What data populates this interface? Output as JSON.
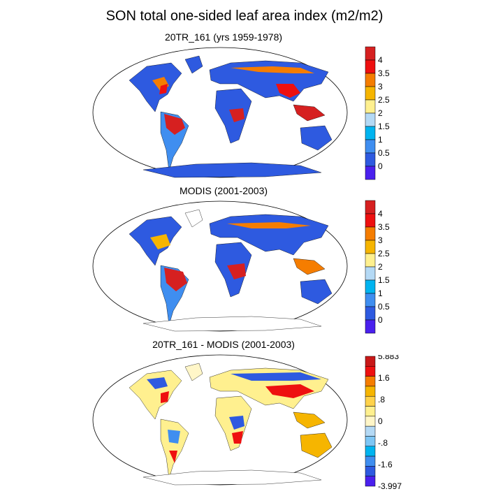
{
  "title": "SON total one-sided leaf area index (m2/m2)",
  "panels": [
    {
      "title": "20TR_161 (yrs 1959-1978)",
      "colorbar": {
        "labels": [
          "4",
          "3.5",
          "3",
          "2.5",
          "2",
          "1.5",
          "1",
          "0.5",
          "0"
        ],
        "colors": [
          "#d62020",
          "#ee1010",
          "#f57d00",
          "#f6b500",
          "#fff08f",
          "#b4d9f5",
          "#00b4f0",
          "#3f8ef0",
          "#2e5ae0",
          "#4a20ee"
        ]
      }
    },
    {
      "title": "MODIS (2001-2003)",
      "colorbar": {
        "labels": [
          "4",
          "3.5",
          "3",
          "2.5",
          "2",
          "1.5",
          "1",
          "0.5",
          "0"
        ],
        "colors": [
          "#d62020",
          "#ee1010",
          "#f57d00",
          "#f6b500",
          "#fff08f",
          "#b4d9f5",
          "#00b4f0",
          "#3f8ef0",
          "#2e5ae0",
          "#4a20ee"
        ]
      }
    },
    {
      "title": "20TR_161 - MODIS (2001-2003)",
      "colorbar": {
        "labels": [
          "5.883",
          "",
          "1.6",
          "",
          ".8",
          "",
          "0",
          "",
          "-.8",
          "",
          "-1.6",
          "",
          "-3.997"
        ],
        "colors": [
          "#c81818",
          "#ee1010",
          "#f57d00",
          "#f6b500",
          "#ffd24a",
          "#fff08f",
          "#fff6c8",
          "#b4d9f5",
          "#7ec6f5",
          "#00b4f0",
          "#3f8ef0",
          "#2e5ae0",
          "#4a20ee"
        ]
      }
    }
  ]
}
